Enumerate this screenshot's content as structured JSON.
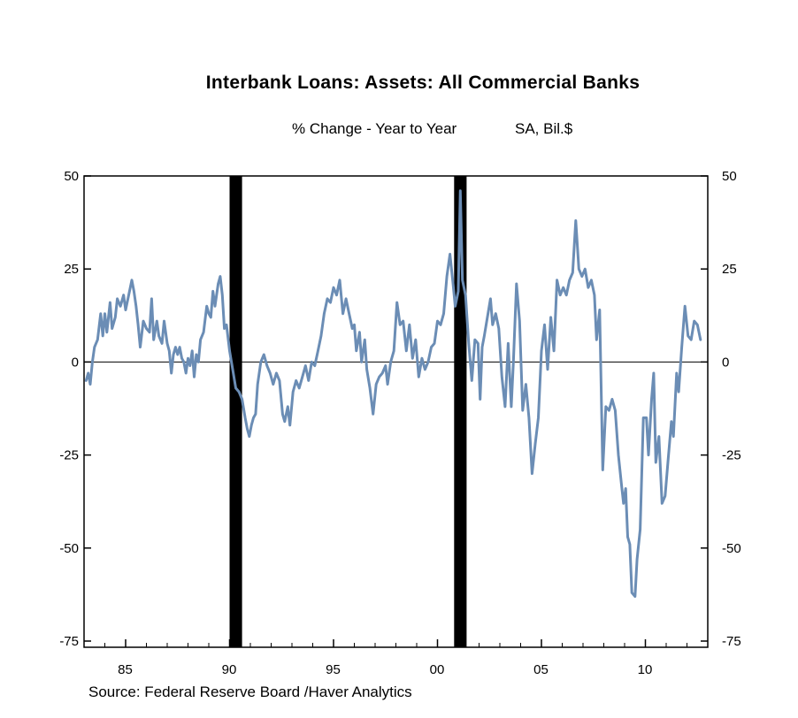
{
  "title": "Interbank Loans: Assets: All Commercial Banks",
  "subtitle_left": "% Change - Year to Year",
  "subtitle_right": "SA, Bil.$",
  "source": "Source:  Federal Reserve Board /Haver Analytics",
  "colors": {
    "series": "#6b8db5",
    "recession": "#000000",
    "zero_line": "#000000"
  },
  "chart_data": {
    "type": "line",
    "title": "Interbank Loans: Assets: All Commercial Banks",
    "xlabel": "",
    "ylabel": "",
    "units": "% Change - Year to Year; SA, Bil.$",
    "xlim": [
      1983.0,
      2013.0
    ],
    "ylim": [
      -75,
      50
    ],
    "y_ticks": [
      50,
      25,
      0,
      -25,
      -50,
      -75
    ],
    "y_tick_labels": [
      "50",
      "25",
      "0",
      "-25",
      "-50",
      "-75"
    ],
    "x_ticks": [
      1985,
      1990,
      1995,
      2000,
      2005,
      2010
    ],
    "x_tick_labels": [
      "85",
      "90",
      "95",
      "00",
      "05",
      "10"
    ],
    "zero_line": true,
    "grid": false,
    "legend": "none",
    "recessions": [
      [
        1990.0,
        1990.6
      ],
      [
        2000.8,
        2001.4
      ]
    ],
    "series": [
      {
        "points": [
          [
            1983.1,
            -5
          ],
          [
            1983.2,
            -3
          ],
          [
            1983.3,
            -6
          ],
          [
            1983.4,
            0
          ],
          [
            1983.5,
            4
          ],
          [
            1983.65,
            6
          ],
          [
            1983.8,
            13
          ],
          [
            1983.9,
            7
          ],
          [
            1984.0,
            13
          ],
          [
            1984.1,
            8
          ],
          [
            1984.25,
            16
          ],
          [
            1984.35,
            9
          ],
          [
            1984.5,
            12
          ],
          [
            1984.6,
            17
          ],
          [
            1984.75,
            15
          ],
          [
            1984.9,
            18
          ],
          [
            1985.0,
            14
          ],
          [
            1985.15,
            18
          ],
          [
            1985.3,
            22
          ],
          [
            1985.4,
            19
          ],
          [
            1985.5,
            15
          ],
          [
            1985.6,
            10
          ],
          [
            1985.7,
            4
          ],
          [
            1985.85,
            11
          ],
          [
            1986.0,
            9
          ],
          [
            1986.15,
            8
          ],
          [
            1986.25,
            17
          ],
          [
            1986.35,
            6
          ],
          [
            1986.5,
            11
          ],
          [
            1986.6,
            7
          ],
          [
            1986.75,
            5
          ],
          [
            1986.85,
            11
          ],
          [
            1987.0,
            5
          ],
          [
            1987.1,
            3
          ],
          [
            1987.2,
            -3
          ],
          [
            1987.3,
            2
          ],
          [
            1987.4,
            4
          ],
          [
            1987.5,
            2
          ],
          [
            1987.6,
            4
          ],
          [
            1987.7,
            1
          ],
          [
            1987.8,
            0
          ],
          [
            1987.9,
            -3
          ],
          [
            1988.0,
            1
          ],
          [
            1988.1,
            -1
          ],
          [
            1988.2,
            3
          ],
          [
            1988.3,
            -4
          ],
          [
            1988.4,
            2
          ],
          [
            1988.5,
            0
          ],
          [
            1988.6,
            6
          ],
          [
            1988.75,
            8
          ],
          [
            1988.9,
            15
          ],
          [
            1989.0,
            13
          ],
          [
            1989.1,
            12
          ],
          [
            1989.2,
            19
          ],
          [
            1989.3,
            15
          ],
          [
            1989.45,
            21
          ],
          [
            1989.55,
            23
          ],
          [
            1989.65,
            18
          ],
          [
            1989.75,
            9
          ],
          [
            1989.85,
            10
          ],
          [
            1990.0,
            3
          ],
          [
            1990.15,
            -2
          ],
          [
            1990.3,
            -7
          ],
          [
            1990.45,
            -8
          ],
          [
            1990.6,
            -10
          ],
          [
            1990.75,
            -15
          ],
          [
            1990.85,
            -18
          ],
          [
            1990.95,
            -20
          ],
          [
            1991.05,
            -17
          ],
          [
            1991.15,
            -15
          ],
          [
            1991.25,
            -14
          ],
          [
            1991.35,
            -6
          ],
          [
            1991.5,
            0
          ],
          [
            1991.65,
            2
          ],
          [
            1991.8,
            -1
          ],
          [
            1991.95,
            -3
          ],
          [
            1992.1,
            -6
          ],
          [
            1992.25,
            -3
          ],
          [
            1992.4,
            -5
          ],
          [
            1992.55,
            -14
          ],
          [
            1992.65,
            -16
          ],
          [
            1992.8,
            -12
          ],
          [
            1992.9,
            -17
          ],
          [
            1993.05,
            -8
          ],
          [
            1993.2,
            -5
          ],
          [
            1993.35,
            -7
          ],
          [
            1993.5,
            -4
          ],
          [
            1993.65,
            -1
          ],
          [
            1993.8,
            -5
          ],
          [
            1993.95,
            0
          ],
          [
            1994.1,
            -1
          ],
          [
            1994.25,
            3
          ],
          [
            1994.4,
            7
          ],
          [
            1994.55,
            13
          ],
          [
            1994.7,
            17
          ],
          [
            1994.85,
            16
          ],
          [
            1995.0,
            20
          ],
          [
            1995.15,
            18
          ],
          [
            1995.3,
            22
          ],
          [
            1995.45,
            13
          ],
          [
            1995.6,
            17
          ],
          [
            1995.75,
            13
          ],
          [
            1995.9,
            9
          ],
          [
            1996.0,
            10
          ],
          [
            1996.1,
            3
          ],
          [
            1996.25,
            8
          ],
          [
            1996.35,
            0
          ],
          [
            1996.5,
            6
          ],
          [
            1996.6,
            -2
          ],
          [
            1996.75,
            -7
          ],
          [
            1996.9,
            -14
          ],
          [
            1997.05,
            -6
          ],
          [
            1997.2,
            -4
          ],
          [
            1997.35,
            -3
          ],
          [
            1997.5,
            -1
          ],
          [
            1997.6,
            -6
          ],
          [
            1997.75,
            0
          ],
          [
            1997.9,
            3
          ],
          [
            1998.05,
            16
          ],
          [
            1998.2,
            10
          ],
          [
            1998.35,
            11
          ],
          [
            1998.5,
            3
          ],
          [
            1998.65,
            10
          ],
          [
            1998.8,
            1
          ],
          [
            1998.95,
            6
          ],
          [
            1999.1,
            -4
          ],
          [
            1999.25,
            1
          ],
          [
            1999.4,
            -2
          ],
          [
            1999.55,
            0
          ],
          [
            1999.7,
            4
          ],
          [
            1999.85,
            5
          ],
          [
            2000.0,
            11
          ],
          [
            2000.15,
            10
          ],
          [
            2000.3,
            13
          ],
          [
            2000.45,
            23
          ],
          [
            2000.6,
            29
          ],
          [
            2000.75,
            21
          ],
          [
            2000.85,
            15
          ],
          [
            2001.0,
            19
          ],
          [
            2001.1,
            46
          ],
          [
            2001.2,
            22
          ],
          [
            2001.35,
            18
          ],
          [
            2001.5,
            5
          ],
          [
            2001.65,
            -5
          ],
          [
            2001.8,
            6
          ],
          [
            2001.95,
            5
          ],
          [
            2002.05,
            -10
          ],
          [
            2002.15,
            4
          ],
          [
            2002.25,
            7
          ],
          [
            2002.4,
            12
          ],
          [
            2002.55,
            17
          ],
          [
            2002.65,
            10
          ],
          [
            2002.8,
            13
          ],
          [
            2002.95,
            9
          ],
          [
            2003.1,
            -4
          ],
          [
            2003.25,
            -12
          ],
          [
            2003.4,
            5
          ],
          [
            2003.55,
            -12
          ],
          [
            2003.65,
            0
          ],
          [
            2003.8,
            21
          ],
          [
            2003.95,
            11
          ],
          [
            2004.1,
            -13
          ],
          [
            2004.25,
            -6
          ],
          [
            2004.4,
            -15
          ],
          [
            2004.55,
            -30
          ],
          [
            2004.7,
            -22
          ],
          [
            2004.85,
            -15
          ],
          [
            2005.0,
            3
          ],
          [
            2005.15,
            10
          ],
          [
            2005.3,
            -2
          ],
          [
            2005.45,
            12
          ],
          [
            2005.6,
            3
          ],
          [
            2005.75,
            22
          ],
          [
            2005.9,
            18
          ],
          [
            2006.05,
            20
          ],
          [
            2006.2,
            18
          ],
          [
            2006.35,
            22
          ],
          [
            2006.5,
            24
          ],
          [
            2006.65,
            38
          ],
          [
            2006.8,
            25
          ],
          [
            2006.95,
            23
          ],
          [
            2007.1,
            25
          ],
          [
            2007.25,
            20
          ],
          [
            2007.4,
            22
          ],
          [
            2007.55,
            18
          ],
          [
            2007.65,
            6
          ],
          [
            2007.8,
            14
          ],
          [
            2007.95,
            -29
          ],
          [
            2008.1,
            -12
          ],
          [
            2008.25,
            -13
          ],
          [
            2008.4,
            -10
          ],
          [
            2008.55,
            -13
          ],
          [
            2008.7,
            -25
          ],
          [
            2008.85,
            -33
          ],
          [
            2008.95,
            -38
          ],
          [
            2009.05,
            -34
          ],
          [
            2009.15,
            -47
          ],
          [
            2009.25,
            -49
          ],
          [
            2009.35,
            -62
          ],
          [
            2009.5,
            -63
          ],
          [
            2009.6,
            -53
          ],
          [
            2009.75,
            -45
          ],
          [
            2009.9,
            -15
          ],
          [
            2010.05,
            -15
          ],
          [
            2010.15,
            -25
          ],
          [
            2010.3,
            -10
          ],
          [
            2010.4,
            -3
          ],
          [
            2010.5,
            -27
          ],
          [
            2010.65,
            -20
          ],
          [
            2010.8,
            -38
          ],
          [
            2010.95,
            -36
          ],
          [
            2011.1,
            -26
          ],
          [
            2011.25,
            -16
          ],
          [
            2011.35,
            -20
          ],
          [
            2011.5,
            -3
          ],
          [
            2011.6,
            -8
          ],
          [
            2011.75,
            4
          ],
          [
            2011.9,
            15
          ],
          [
            2012.05,
            7
          ],
          [
            2012.2,
            6
          ],
          [
            2012.35,
            11
          ],
          [
            2012.5,
            10
          ],
          [
            2012.65,
            6
          ]
        ]
      }
    ]
  }
}
